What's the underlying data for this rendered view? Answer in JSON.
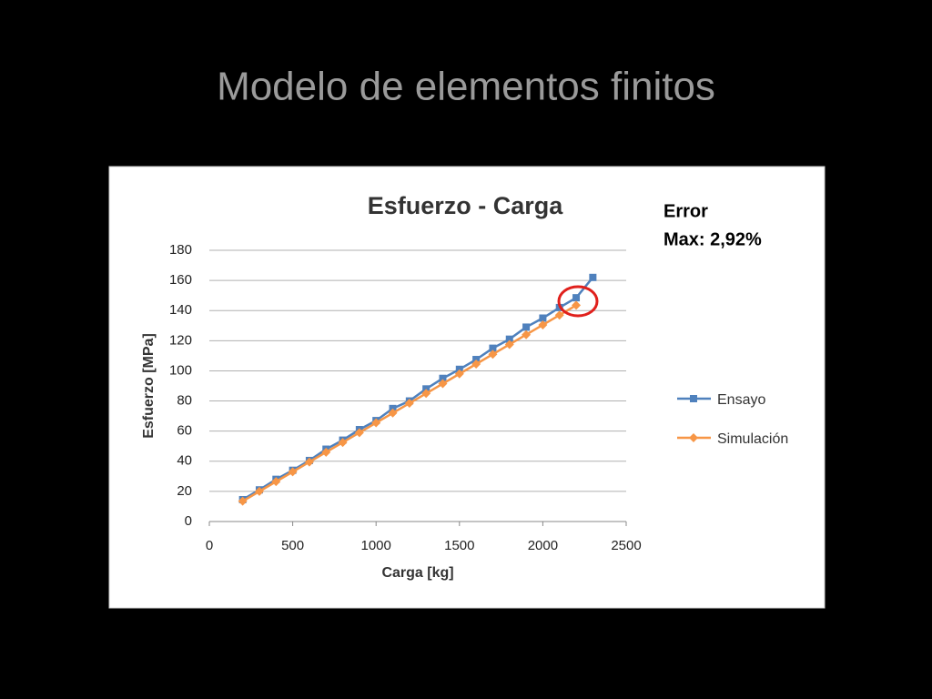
{
  "slide_title": "Modelo de elementos finitos",
  "chart_data": {
    "type": "line",
    "title": "Esfuerzo - Carga",
    "x_label": "Carga [kg]",
    "y_label": "Esfuerzo [MPa]",
    "annotations": [
      "Error",
      "Max: 2,92%"
    ],
    "x": [
      200,
      300,
      400,
      500,
      600,
      700,
      800,
      900,
      1000,
      1100,
      1200,
      1300,
      1400,
      1500,
      1600,
      1700,
      1800,
      1900,
      2000,
      2100,
      2200,
      2300
    ],
    "series": [
      {
        "name": "Ensayo",
        "color": "#4f81bd",
        "marker": "square",
        "values": [
          14.5,
          21,
          28,
          34,
          40.5,
          48,
          54,
          61,
          67,
          75,
          80,
          88,
          95,
          101,
          107.5,
          115,
          121,
          129,
          135,
          142,
          148.5,
          162
        ]
      },
      {
        "name": "Simulación",
        "color": "#f79646",
        "marker": "diamond",
        "values": [
          13.5,
          20,
          26.5,
          33,
          39.5,
          46,
          52.5,
          59,
          65.5,
          72,
          78.5,
          85,
          91.5,
          98,
          104.5,
          111,
          117.5,
          124,
          130.5,
          137,
          143.5,
          null
        ]
      }
    ],
    "xlim": [
      0,
      2500
    ],
    "xticks": [
      0,
      500,
      1000,
      1500,
      2000,
      2500
    ],
    "ylim": [
      0,
      180
    ],
    "yticks": [
      0,
      20,
      40,
      60,
      80,
      100,
      120,
      140,
      160,
      180
    ],
    "grid": true,
    "legend": "right"
  }
}
